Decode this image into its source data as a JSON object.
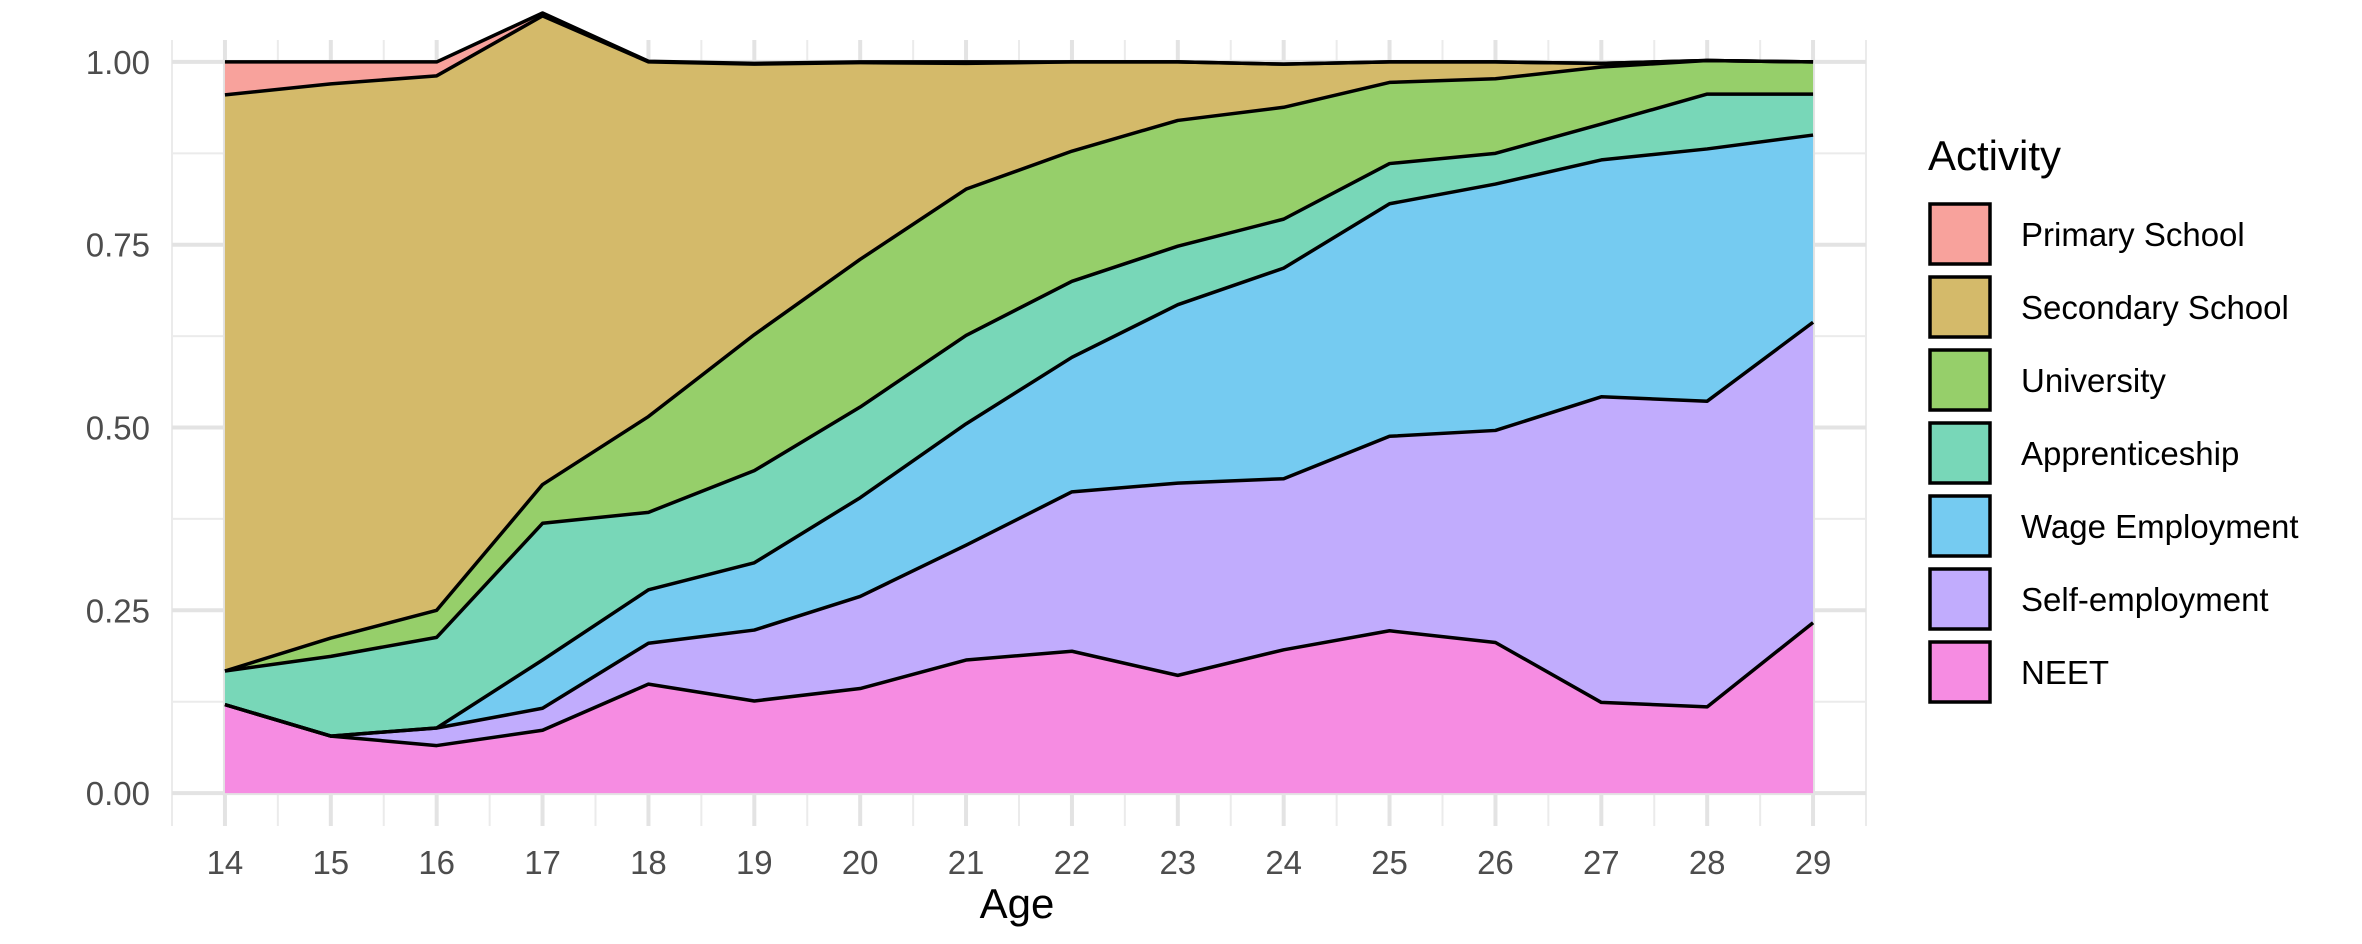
{
  "chart_data": {
    "type": "area",
    "stacked": true,
    "title": "",
    "xlabel": "Age",
    "ylabel": "",
    "x": [
      14,
      15,
      16,
      17,
      18,
      19,
      20,
      21,
      22,
      23,
      24,
      25,
      26,
      27,
      28,
      29
    ],
    "xlim": [
      13.5,
      29.5
    ],
    "ylim": [
      -0.045,
      1.03
    ],
    "x_ticks": [
      "14",
      "15",
      "16",
      "17",
      "18",
      "19",
      "20",
      "21",
      "22",
      "23",
      "24",
      "25",
      "26",
      "27",
      "28",
      "29"
    ],
    "y_ticks": [
      "0.00",
      "0.25",
      "0.50",
      "0.75",
      "1.00"
    ],
    "grid": true,
    "legend_title": "Activity",
    "legend_position": "right",
    "series": [
      {
        "name": "Primary School",
        "color": "#F8A29C",
        "values": [
          0.045,
          0.03,
          0.019,
          0.004,
          0.001,
          0.001,
          0.001,
          0.002,
          0.0,
          0.0,
          0.0,
          0.0,
          0.0,
          0.0,
          0.0,
          0.0
        ]
      },
      {
        "name": "Secondary School",
        "color": "#D4BA6A",
        "values": [
          0.788,
          0.758,
          0.731,
          0.641,
          0.485,
          0.37,
          0.269,
          0.172,
          0.122,
          0.08,
          0.059,
          0.028,
          0.023,
          0.005,
          0.0,
          0.0
        ]
      },
      {
        "name": "University",
        "color": "#96CF6A",
        "values": [
          0.0,
          0.025,
          0.037,
          0.053,
          0.131,
          0.186,
          0.202,
          0.2,
          0.178,
          0.172,
          0.153,
          0.111,
          0.102,
          0.078,
          0.046,
          0.044
        ]
      },
      {
        "name": "Apprenticeship",
        "color": "#78D7B8",
        "values": [
          0.046,
          0.109,
          0.124,
          0.187,
          0.106,
          0.126,
          0.124,
          0.121,
          0.104,
          0.08,
          0.067,
          0.055,
          0.042,
          0.049,
          0.075,
          0.056
        ]
      },
      {
        "name": "Wage Employment",
        "color": "#75CBF1",
        "values": [
          0.0,
          0.0,
          0.0,
          0.066,
          0.073,
          0.092,
          0.135,
          0.166,
          0.184,
          0.244,
          0.288,
          0.318,
          0.337,
          0.324,
          0.345,
          0.256
        ]
      },
      {
        "name": "Self-employment",
        "color": "#C1ACFD",
        "values": [
          0.0,
          0.0,
          0.024,
          0.03,
          0.056,
          0.097,
          0.126,
          0.157,
          0.218,
          0.263,
          0.234,
          0.266,
          0.29,
          0.418,
          0.418,
          0.411
        ]
      },
      {
        "name": "NEET",
        "color": "#F68CE2",
        "values": [
          0.121,
          0.078,
          0.065,
          0.086,
          0.149,
          0.126,
          0.143,
          0.182,
          0.194,
          0.161,
          0.196,
          0.222,
          0.206,
          0.124,
          0.118,
          0.233
        ]
      }
    ]
  }
}
